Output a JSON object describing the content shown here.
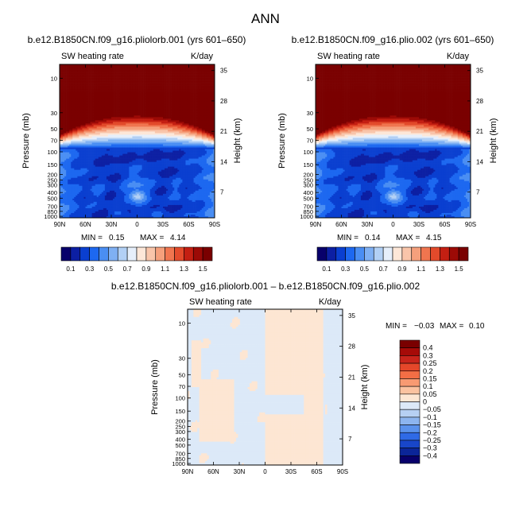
{
  "page": {
    "title": "ANN",
    "diff_title": "b.e12.B1850CN.f09_g16.pliolorb.001 – b.e12.B1850CN.f09_g16.plio.002"
  },
  "chart_data": [
    {
      "type": "heatmap",
      "id": "panel1",
      "title": "b.e12.B1850CN.f09_g16.pliolorb.001 (yrs 601–650)",
      "variable": "SW heating rate",
      "units": "K/day",
      "xlabel": "",
      "ylabel": "Pressure (mb)",
      "ylabel2": "Height (km)",
      "x_ticks": [
        "90N",
        "60N",
        "30N",
        "0",
        "30S",
        "60S",
        "90S"
      ],
      "y_ticks": [
        "10",
        "30",
        "50",
        "70",
        "100",
        "150",
        "200",
        "250",
        "300",
        "400",
        "500",
        "700",
        "850",
        "1000"
      ],
      "y2_ticks": [
        "35",
        "28",
        "21",
        "14",
        "7"
      ],
      "stats": {
        "min_label": "MIN =",
        "min": "0.15",
        "max_label": "MAX =",
        "max": "4.14"
      },
      "colorbar_levels": [
        "0.1",
        "0.3",
        "0.5",
        "0.7",
        "0.9",
        "1.1",
        "1.3",
        "1.5"
      ]
    },
    {
      "type": "heatmap",
      "id": "panel2",
      "title": "b.e12.B1850CN.f09_g16.plio.002 (yrs 601–650)",
      "variable": "SW heating rate",
      "units": "K/day",
      "xlabel": "",
      "ylabel": "Pressure (mb)",
      "ylabel2": "Height (km)",
      "x_ticks": [
        "90N",
        "60N",
        "30N",
        "0",
        "30S",
        "60S",
        "90S"
      ],
      "y_ticks": [
        "10",
        "30",
        "50",
        "70",
        "100",
        "150",
        "200",
        "250",
        "300",
        "400",
        "500",
        "700",
        "850",
        "1000"
      ],
      "y2_ticks": [
        "35",
        "28",
        "21",
        "14",
        "7"
      ],
      "stats": {
        "min_label": "MIN =",
        "min": "0.14",
        "max_label": "MAX =",
        "max": "4.15"
      },
      "colorbar_levels": [
        "0.1",
        "0.3",
        "0.5",
        "0.7",
        "0.9",
        "1.1",
        "1.3",
        "1.5"
      ]
    },
    {
      "type": "heatmap",
      "id": "diff",
      "title": "b.e12.B1850CN.f09_g16.pliolorb.001 – b.e12.B1850CN.f09_g16.plio.002",
      "variable": "SW heating rate",
      "units": "K/day",
      "xlabel": "",
      "ylabel": "Pressure (mb)",
      "ylabel2": "Height (km)",
      "x_ticks": [
        "90N",
        "60N",
        "30N",
        "0",
        "30S",
        "60S",
        "90S"
      ],
      "y_ticks": [
        "10",
        "30",
        "50",
        "70",
        "100",
        "150",
        "200",
        "250",
        "300",
        "400",
        "500",
        "700",
        "850",
        "1000"
      ],
      "y2_ticks": [
        "35",
        "28",
        "21",
        "14",
        "7"
      ],
      "stats": {
        "min_label": "MIN =",
        "min": "−0.03",
        "max_label": "MAX =",
        "max": "0.10"
      },
      "colorbar_levels": [
        "0.4",
        "0.3",
        "0.25",
        "0.2",
        "0.15",
        "0.1",
        "0.05",
        "0",
        "−0.05",
        "−0.1",
        "−0.15",
        "−0.2",
        "−0.25",
        "−0.3",
        "−0.4"
      ]
    }
  ],
  "colors": {
    "panel_scale": [
      "#08006b",
      "#0c1fa3",
      "#0a3fd0",
      "#1d68f0",
      "#4a8ef3",
      "#7fb0f3",
      "#b2d0f5",
      "#e6effb",
      "#fde7d8",
      "#f9c5aa",
      "#f5a07c",
      "#f0754f",
      "#e34a2b",
      "#c41f12",
      "#9c0a06",
      "#7a0000"
    ],
    "diff_scale": [
      "#7a0000",
      "#a60b08",
      "#c8241b",
      "#e5472a",
      "#f36e45",
      "#f89a72",
      "#fbc2a0",
      "#fde6d3",
      "#dce9f8",
      "#b6d0f3",
      "#8db5ef",
      "#5b92ec",
      "#2f6ae6",
      "#1846c9",
      "#0b2598",
      "#08006b"
    ]
  }
}
